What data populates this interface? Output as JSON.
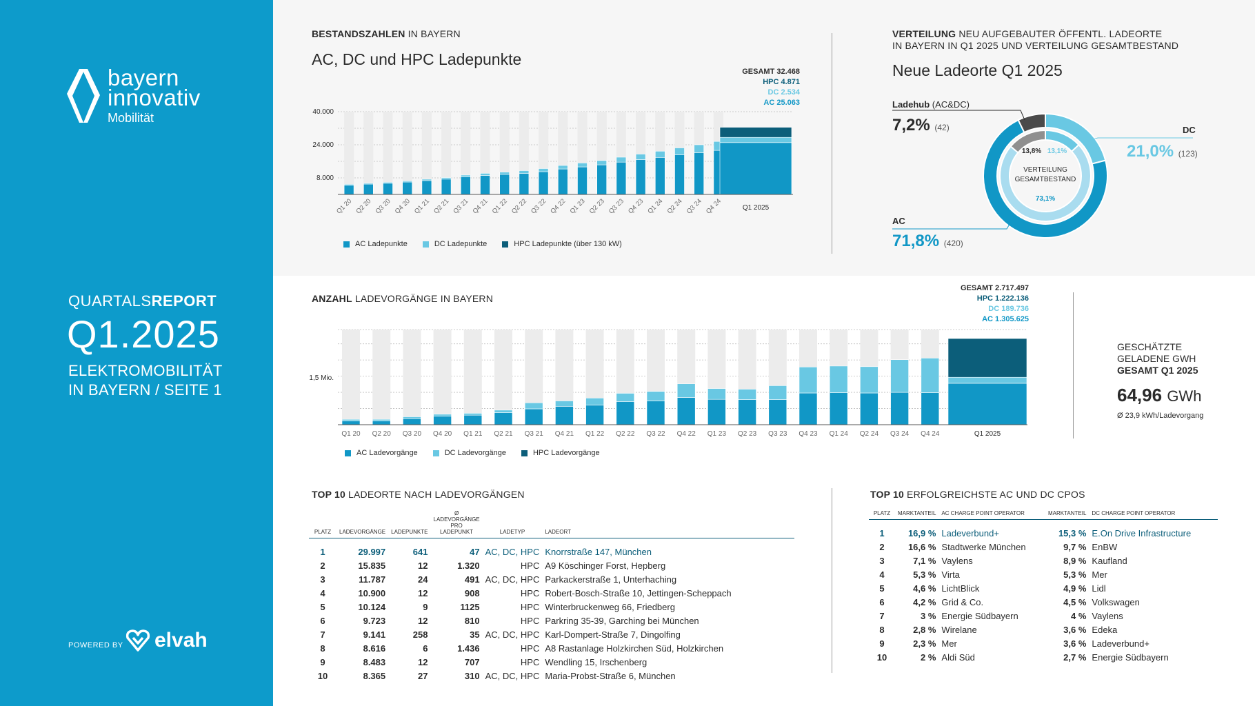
{
  "sidebar": {
    "brand_line1": "bayern",
    "brand_line2": "innovativ",
    "brand_sub": "Mobilität",
    "kicker_light": "QUARTALS",
    "kicker_bold": "REPORT",
    "quarter": "Q1.2025",
    "desc_line1": "ELEKTROMOBILITÄT",
    "desc_line2": "IN BAYERN / SEITE 1",
    "powered_by": "POWERED BY",
    "partner_name": "elvah",
    "icons": [
      "bayern-innovativ-logo-icon",
      "elvah-logo-icon"
    ]
  },
  "colors": {
    "sidebar": "#0d9bcb",
    "ac": "#1197c6",
    "dc": "#69c8e3",
    "hpc": "#0c5e7a",
    "background_bar": "#ececec",
    "ladehub": "#4a4a4a"
  },
  "stock": {
    "section_bold": "BESTANDSZAHLEN",
    "section_light": "IN BAYERN",
    "title": "AC, DC und HPC Ladepunkte",
    "total_gesamt": "GESAMT 32.468",
    "total_hpc": "HPC  4.871",
    "total_dc": "DC 2.534",
    "total_ac": "AC 25.063",
    "legend": [
      "AC Ladepunkte",
      "DC Ladepunkte",
      "HPC Ladepunkte (über 130 kW)"
    ]
  },
  "sessions": {
    "section_bold": "ANZAHL",
    "section_light": "LADEVORGÄNGE IN BAYERN",
    "total_gesamt": "GESAMT 2.717.497",
    "total_hpc": "HPC 1.222.136",
    "total_dc": "DC 189.736",
    "total_ac": "AC 1.305.625",
    "legend": [
      "AC Ladevorgänge",
      "DC Ladevorgänge",
      "HPC Ladevorgänge"
    ]
  },
  "distribution": {
    "section_bold": "VERTEILUNG",
    "section_light_1": "NEU AUFGEBAUTER ÖFFENTL. LADEORTE",
    "section_light_2": "IN BAYERN IN Q1 2025 UND VERTEILUNG GESAMTBESTAND",
    "title": "Neue Ladeorte Q1 2025",
    "ladehub_label": "Ladehub",
    "ladehub_sub": "(AC&DC)",
    "ladehub_pct": "7,2%",
    "ladehub_count": "(42)",
    "dc_label": "DC",
    "dc_pct": "21,0%",
    "dc_count": "(123)",
    "ac_label": "AC",
    "ac_pct": "71,8%",
    "ac_count": "(420)",
    "inner_label_1": "VERTEILUNG",
    "inner_label_2": "GESAMTBESTAND",
    "inner_ladehub": "13,8%",
    "inner_dc": "13,1%",
    "inner_ac": "73,1%"
  },
  "gwh": {
    "line1": "GESCHÄTZTE",
    "line2": "GELADENE GWH",
    "line3": "GESAMT Q1 2025",
    "value": "64,96",
    "unit": "GWh",
    "per": "Ø 23,9 kWh/Ladevorgang"
  },
  "top10": {
    "section_bold": "TOP 10",
    "section_light": "LADEORTE NACH LADEVORGÄNGEN",
    "headers": [
      "PLATZ",
      "LADEVORGÄNGE",
      "LADEPUNKTE",
      "Ø LADEVORGÄNGE PRO LADEPUNKT",
      "LADETYP",
      "LADEORT"
    ],
    "rows": [
      [
        "1",
        "29.997",
        "641",
        "47",
        "AC, DC, HPC",
        "Knorrstraße 147, München"
      ],
      [
        "2",
        "15.835",
        "12",
        "1.320",
        "HPC",
        "A9 Köschinger Forst, Hepberg"
      ],
      [
        "3",
        "11.787",
        "24",
        "491",
        "AC, DC, HPC",
        "Parkackerstraße 1, Unterhaching"
      ],
      [
        "4",
        "10.900",
        "12",
        "908",
        "HPC",
        "Robert-Bosch-Straße 10, Jettingen-Scheppach"
      ],
      [
        "5",
        "10.124",
        "9",
        "1125",
        "HPC",
        "Winterbruckenweg 66, Friedberg"
      ],
      [
        "6",
        "9.723",
        "12",
        "810",
        "HPC",
        "Parkring 35-39, Garching bei München"
      ],
      [
        "7",
        "9.141",
        "258",
        "35",
        "AC, DC, HPC",
        "Karl-Dompert-Straße 7, Dingolfing"
      ],
      [
        "8",
        "8.616",
        "6",
        "1.436",
        "HPC",
        "A8 Rastanlage Holzkirchen Süd, Holzkirchen"
      ],
      [
        "9",
        "8.483",
        "12",
        "707",
        "HPC",
        "Wendling 15, Irschenberg"
      ],
      [
        "10",
        "8.365",
        "27",
        "310",
        "AC, DC, HPC",
        "Maria-Probst-Straße 6, München"
      ]
    ]
  },
  "cpos": {
    "section_bold": "TOP 10",
    "section_light": "ERFOLGREICHSTE AC UND DC CPOS",
    "headers": [
      "PLATZ",
      "MARKTANTEIL",
      "AC CHARGE POINT OPERATOR",
      "MARKTANTEIL",
      "DC CHARGE POINT OPERATOR"
    ],
    "rows": [
      [
        "1",
        "16,9 %",
        "Ladeverbund+",
        "15,3 %",
        "E.On Drive Infrastructure"
      ],
      [
        "2",
        "16,6 %",
        "Stadtwerke München",
        "9,7 %",
        "EnBW"
      ],
      [
        "3",
        "7,1 %",
        "Vaylens",
        "8,9 %",
        "Kaufland"
      ],
      [
        "4",
        "5,3 %",
        "Virta",
        "5,3 %",
        "Mer"
      ],
      [
        "5",
        "4,6 %",
        "LichtBlick",
        "4,9 %",
        "Lidl"
      ],
      [
        "6",
        "4,2 %",
        "Grid & Co.",
        "4,5 %",
        "Volkswagen"
      ],
      [
        "7",
        "3 %",
        "Energie Südbayern",
        "4 %",
        "Vaylens"
      ],
      [
        "8",
        "2,8 %",
        "Wirelane",
        "3,6 %",
        "Edeka"
      ],
      [
        "9",
        "2,3 %",
        "Mer",
        "3,6 %",
        "Ladeverbund+"
      ],
      [
        "10",
        "2 %",
        "Aldi Süd",
        "2,7 %",
        "Energie Südbayern"
      ]
    ]
  },
  "chart_data": [
    {
      "type": "bar",
      "stacked": true,
      "title": "AC, DC und HPC Ladepunkte",
      "categories": [
        "Q1 20",
        "Q2 20",
        "Q3 20",
        "Q4 20",
        "Q1 21",
        "Q2 21",
        "Q3 21",
        "Q4 21",
        "Q1 22",
        "Q2 22",
        "Q3 22",
        "Q4 22",
        "Q1 23",
        "Q2 23",
        "Q3 23",
        "Q4 23",
        "Q1 24",
        "Q2 24",
        "Q3 24",
        "Q4 24",
        "Q1 2025"
      ],
      "yticks": [
        "8.000",
        "24.000",
        "40.000"
      ],
      "ylim": [
        0,
        40000
      ],
      "series": [
        {
          "name": "AC Ladepunkte",
          "values": [
            4500,
            5000,
            5400,
            6000,
            6700,
            7400,
            8500,
            9200,
            9700,
            10200,
            11000,
            12300,
            13300,
            14300,
            15600,
            16800,
            17900,
            19100,
            20200,
            21300,
            25063
          ]
        },
        {
          "name": "DC Ladepunkte",
          "values": [
            400,
            450,
            500,
            550,
            650,
            750,
            850,
            1000,
            1100,
            1300,
            1500,
            1700,
            1900,
            2100,
            2400,
            2700,
            3000,
            3400,
            3800,
            4300,
            2534
          ]
        },
        {
          "name": "HPC Ladepunkte (über 130 kW)",
          "values": [
            0,
            0,
            0,
            0,
            0,
            0,
            0,
            0,
            0,
            0,
            0,
            0,
            0,
            0,
            0,
            0,
            0,
            0,
            0,
            0,
            4871
          ]
        }
      ]
    },
    {
      "type": "bar",
      "stacked": true,
      "title": "",
      "categories": [
        "Q1 20",
        "Q2 20",
        "Q3 20",
        "Q4 20",
        "Q1 21",
        "Q2 21",
        "Q3 21",
        "Q4 21",
        "Q1 22",
        "Q2 22",
        "Q3 22",
        "Q4 22",
        "Q1 23",
        "Q2 23",
        "Q3 23",
        "Q4 23",
        "Q1 24",
        "Q2 24",
        "Q3 24",
        "Q4 24",
        "Q1 2025"
      ],
      "yticks": [
        "1,5 Mio."
      ],
      "ylim": [
        0,
        3000000
      ],
      "series": [
        {
          "name": "AC Ladevorgänge",
          "values": [
            120000,
            120000,
            190000,
            270000,
            300000,
            380000,
            500000,
            580000,
            620000,
            730000,
            750000,
            860000,
            800000,
            790000,
            790000,
            1000000,
            1010000,
            1000000,
            1020000,
            1010000,
            1305625
          ]
        },
        {
          "name": "DC Ladevorgänge",
          "values": [
            50000,
            50000,
            60000,
            60000,
            60000,
            80000,
            190000,
            170000,
            220000,
            260000,
            300000,
            430000,
            340000,
            330000,
            440000,
            820000,
            840000,
            830000,
            1030000,
            1090000,
            189736
          ]
        },
        {
          "name": "HPC Ladevorgänge",
          "values": [
            0,
            0,
            0,
            0,
            0,
            0,
            0,
            0,
            0,
            0,
            0,
            0,
            0,
            0,
            0,
            0,
            0,
            0,
            0,
            0,
            1222136
          ]
        }
      ]
    },
    {
      "type": "pie",
      "title": "Neue Ladeorte Q1 2025",
      "rings": [
        {
          "name": "Neue Ladeorte Q1 2025",
          "labels": [
            "DC",
            "AC",
            "Ladehub"
          ],
          "values": [
            21.0,
            71.8,
            7.2
          ]
        },
        {
          "name": "Verteilung Gesamtbestand",
          "labels": [
            "DC",
            "AC",
            "Ladehub"
          ],
          "values": [
            13.1,
            73.1,
            13.8
          ]
        }
      ]
    }
  ]
}
